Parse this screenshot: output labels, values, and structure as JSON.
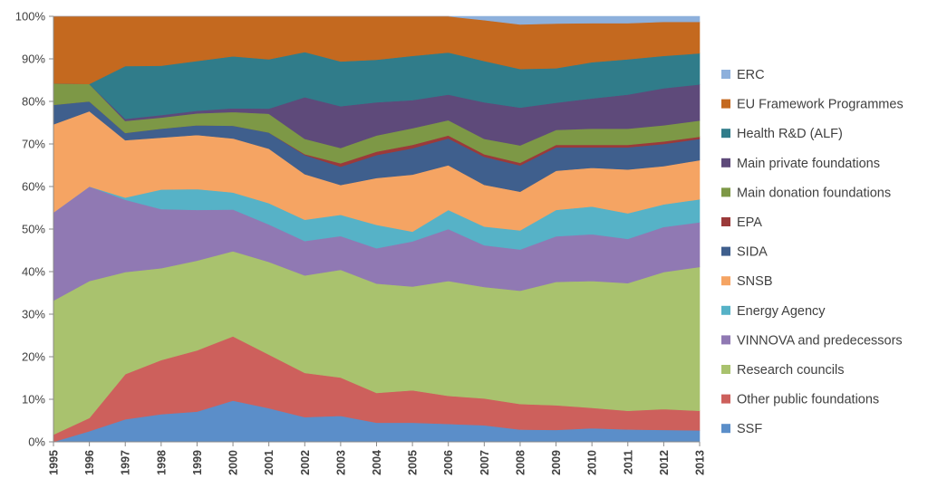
{
  "chart_data": {
    "type": "area",
    "stacked": true,
    "percent": true,
    "x": [
      "1995",
      "1996",
      "1997",
      "1998",
      "1999",
      "2000",
      "2001",
      "2002",
      "2003",
      "2004",
      "2005",
      "2006",
      "2007",
      "2008",
      "2009",
      "2010",
      "2011",
      "2012",
      "2013"
    ],
    "y_ticks": [
      "0%",
      "10%",
      "20%",
      "30%",
      "40%",
      "50%",
      "60%",
      "70%",
      "80%",
      "90%",
      "100%"
    ],
    "ylim": [
      0,
      100
    ],
    "legend_position": "right",
    "grid": false,
    "series": [
      {
        "name": "SSF",
        "color": "#5b8ec9",
        "values": [
          0,
          2.5,
          5.3,
          6.5,
          7.1,
          9.7,
          7.9,
          5.8,
          6.1,
          4.5,
          4.5,
          4.2,
          3.9,
          2.9,
          2.8,
          3.2,
          2.9,
          2.8,
          2.7
        ]
      },
      {
        "name": "Other public foundations",
        "color": "#cd605c",
        "values": [
          1.7,
          3.1,
          10.6,
          12.7,
          14.4,
          15.1,
          12.6,
          10.4,
          9.0,
          7.0,
          7.6,
          6.6,
          6.3,
          6.0,
          5.8,
          4.8,
          4.4,
          4.9,
          4.6
        ]
      },
      {
        "name": "Research councils",
        "color": "#a9c26e",
        "values": [
          31.5,
          32.2,
          24.0,
          21.6,
          21.1,
          20.0,
          21.8,
          22.9,
          25.3,
          25.7,
          24.4,
          27.0,
          26.2,
          26.7,
          29.0,
          29.8,
          30.0,
          32.2,
          33.8
        ]
      },
      {
        "name": "VINNOVA and predecessors",
        "color": "#9079b3",
        "values": [
          20.7,
          22.2,
          17.0,
          13.9,
          11.9,
          9.8,
          8.8,
          8.1,
          7.9,
          8.3,
          10.6,
          12.2,
          9.8,
          9.7,
          10.7,
          11.0,
          10.4,
          10.6,
          10.5
        ]
      },
      {
        "name": "Energy Agency",
        "color": "#56b2c7",
        "values": [
          0,
          0,
          0.5,
          4.6,
          4.9,
          4.0,
          5.0,
          5.0,
          5.0,
          5.5,
          2.3,
          4.5,
          4.4,
          4.5,
          6.2,
          6.5,
          6.0,
          5.3,
          5.4
        ]
      },
      {
        "name": "SNSB",
        "color": "#f5a463",
        "values": [
          20.7,
          17.7,
          13.5,
          12.2,
          12.7,
          12.7,
          12.8,
          10.7,
          7.0,
          11.0,
          13.4,
          10.5,
          9.8,
          9.1,
          9.2,
          9.1,
          10.3,
          9.0,
          9.2
        ]
      },
      {
        "name": "SIDA",
        "color": "#3f5f8d",
        "values": [
          4.6,
          2.3,
          1.7,
          2.1,
          2.3,
          3.0,
          3.8,
          4.5,
          4.3,
          5.4,
          6.2,
          6.3,
          6.6,
          6.2,
          5.5,
          4.8,
          5.2,
          5.2,
          5.0
        ]
      },
      {
        "name": "EPA",
        "color": "#9b3a3a",
        "values": [
          0,
          0,
          0,
          0,
          0,
          0,
          0,
          0.2,
          0.8,
          0.8,
          0.8,
          0.7,
          0.6,
          0.6,
          0.6,
          0.6,
          0.6,
          0.6,
          0.5
        ]
      },
      {
        "name": "Main donation foundations",
        "color": "#7d9846",
        "values": [
          5.0,
          4.1,
          2.8,
          2.6,
          2.8,
          3.2,
          4.4,
          3.6,
          3.6,
          3.8,
          3.9,
          3.6,
          3.6,
          4.1,
          3.5,
          3.8,
          3.8,
          3.8,
          3.8
        ]
      },
      {
        "name": "Main private foundations",
        "color": "#5e4a7a",
        "values": [
          0,
          0,
          0.5,
          0.6,
          0.6,
          0.9,
          1.2,
          9.8,
          9.8,
          7.8,
          6.6,
          6.0,
          8.6,
          8.9,
          6.4,
          7.1,
          8.0,
          8.7,
          8.5
        ]
      },
      {
        "name": "Health R&D (ALF)",
        "color": "#307c8a",
        "values": [
          0,
          0,
          12.4,
          11.6,
          11.7,
          12.2,
          11.6,
          10.6,
          10.5,
          10.0,
          10.4,
          9.9,
          9.7,
          9.1,
          8.1,
          8.5,
          8.3,
          7.6,
          7.3
        ]
      },
      {
        "name": "EU Framework Programmes",
        "color": "#c4691f",
        "values": [
          15.8,
          15.9,
          11.7,
          11.6,
          10.5,
          9.4,
          10.1,
          8.4,
          10.6,
          10.2,
          9.3,
          8.5,
          9.6,
          10.5,
          10.5,
          9.2,
          8.5,
          8.0,
          7.4
        ]
      },
      {
        "name": "ERC",
        "color": "#8db0dc",
        "values": [
          0,
          0,
          0,
          0,
          0,
          0,
          0,
          0,
          0,
          0,
          0,
          0,
          0.9,
          1.9,
          1.7,
          1.6,
          1.6,
          1.3,
          1.3
        ]
      }
    ]
  }
}
